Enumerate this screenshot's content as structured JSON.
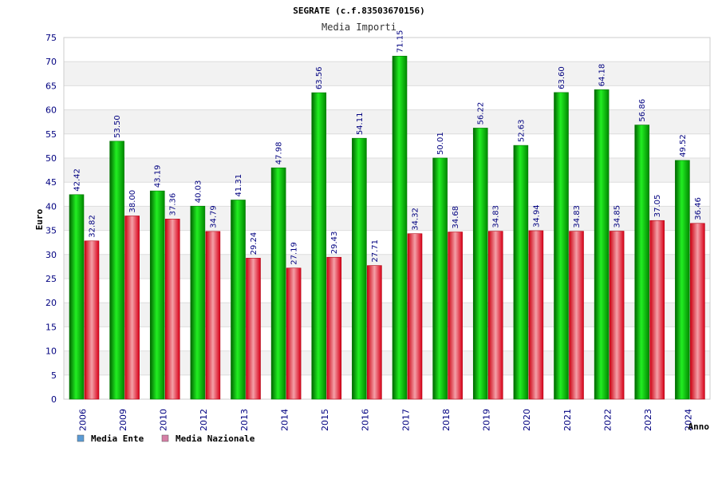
{
  "chart_data": {
    "type": "bar",
    "title": "SEGRATE (c.f.83503670156)",
    "subtitle": "Media Importi",
    "xlabel": "Anno",
    "ylabel": "Euro",
    "ylim": [
      0,
      75
    ],
    "yticks": [
      0,
      5,
      10,
      15,
      20,
      25,
      30,
      35,
      40,
      45,
      50,
      55,
      60,
      65,
      70,
      75
    ],
    "grid": true,
    "legend_position": "bottom-left",
    "categories": [
      "2006",
      "2009",
      "2010",
      "2012",
      "2013",
      "2014",
      "2015",
      "2016",
      "2017",
      "2018",
      "2019",
      "2020",
      "2021",
      "2022",
      "2023",
      "2024"
    ],
    "series": [
      {
        "name": "Media Ente",
        "color": "#00c000",
        "legend_color": "#5b9bd5",
        "values": [
          42.42,
          53.5,
          43.19,
          40.03,
          41.31,
          47.98,
          63.56,
          54.11,
          71.15,
          50.01,
          56.22,
          52.63,
          63.6,
          64.18,
          56.86,
          49.52
        ],
        "labels": [
          "42.42",
          "53.50",
          "43.19",
          "40.03",
          "41.31",
          "47.98",
          "63.56",
          "54.11",
          "71.15",
          "50.01",
          "56.22",
          "52.63",
          "63.60",
          "64.18",
          "56.86",
          "49.52"
        ]
      },
      {
        "name": "Media Nazionale",
        "color": "#e8202a",
        "legend_color": "#d67fa6",
        "values": [
          32.82,
          38.0,
          37.36,
          34.79,
          29.24,
          27.19,
          29.43,
          27.71,
          34.32,
          34.68,
          34.83,
          34.94,
          34.83,
          34.85,
          37.05,
          36.46
        ],
        "labels": [
          "32.82",
          "38.00",
          "37.36",
          "34.79",
          "29.24",
          "27.19",
          "29.43",
          "27.71",
          "34.32",
          "34.68",
          "34.83",
          "34.94",
          "34.83",
          "34.85",
          "37.05",
          "36.46"
        ]
      }
    ]
  }
}
